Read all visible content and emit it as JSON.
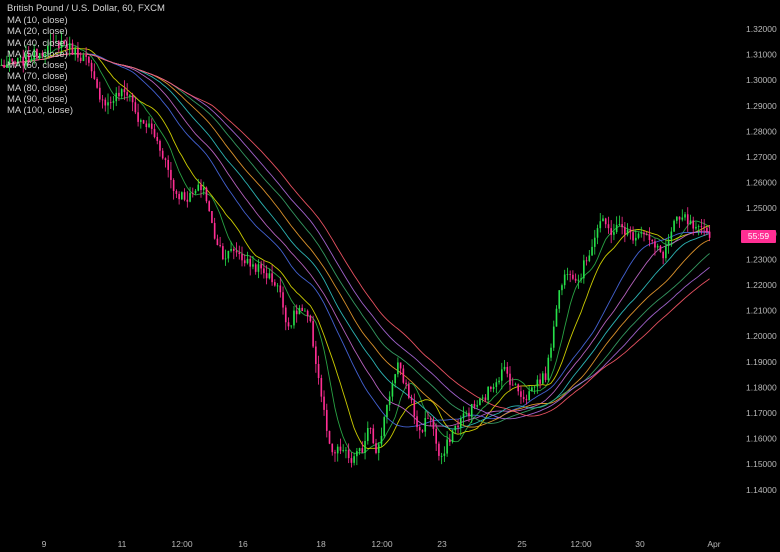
{
  "header": {
    "title": "British Pound / U.S. Dollar, 60, FXCM"
  },
  "legend": [
    "MA (10, close)",
    "MA (20, close)",
    "MA (40, close)",
    "MA (50, close)",
    "MA (60, close)",
    "MA (70, close)",
    "MA (80, close)",
    "MA (90, close)",
    "MA (100, close)"
  ],
  "price_tag": "55:59",
  "colors": {
    "background": "#000000",
    "up": "#26e04a",
    "down": "#ff2e93",
    "tag": "#ff2e93",
    "text": "#cfcfcf"
  },
  "chart_data": {
    "type": "line",
    "title": "British Pound / U.S. Dollar, 60, FXCM",
    "x_ticks": [
      "9",
      "11",
      "12:00",
      "16",
      "18",
      "12:00",
      "23",
      "25",
      "12:00",
      "30",
      "Apr"
    ],
    "y_ticks": [
      "1.32000",
      "1.31000",
      "1.30000",
      "1.29000",
      "1.28000",
      "1.27000",
      "1.26000",
      "1.25000",
      "1.24000",
      "1.23000",
      "1.22000",
      "1.21000",
      "1.20000",
      "1.19000",
      "1.18000",
      "1.17000",
      "1.16000",
      "1.15000",
      "1.14000"
    ],
    "ylim": [
      1.1349,
      1.3259
    ],
    "grid": false,
    "price_path": [
      [
        0.0,
        1.3055
      ],
      [
        0.03,
        1.3075
      ],
      [
        0.06,
        1.312
      ],
      [
        0.085,
        1.315
      ],
      [
        0.1,
        1.312
      ],
      [
        0.12,
        1.308
      ],
      [
        0.135,
        1.296
      ],
      [
        0.15,
        1.2905
      ],
      [
        0.165,
        1.2945
      ],
      [
        0.18,
        1.2955
      ],
      [
        0.195,
        1.283
      ],
      [
        0.21,
        1.282
      ],
      [
        0.23,
        1.27
      ],
      [
        0.245,
        1.256
      ],
      [
        0.265,
        1.254
      ],
      [
        0.285,
        1.259
      ],
      [
        0.3,
        1.24
      ],
      [
        0.315,
        1.231
      ],
      [
        0.33,
        1.234
      ],
      [
        0.345,
        1.229
      ],
      [
        0.36,
        1.227
      ],
      [
        0.375,
        1.224
      ],
      [
        0.39,
        1.22
      ],
      [
        0.405,
        1.204
      ],
      [
        0.42,
        1.211
      ],
      [
        0.435,
        1.206
      ],
      [
        0.45,
        1.18
      ],
      [
        0.465,
        1.153
      ],
      [
        0.48,
        1.156
      ],
      [
        0.495,
        1.151
      ],
      [
        0.51,
        1.156
      ],
      [
        0.52,
        1.168
      ],
      [
        0.53,
        1.152
      ],
      [
        0.545,
        1.175
      ],
      [
        0.56,
        1.188
      ],
      [
        0.575,
        1.178
      ],
      [
        0.59,
        1.162
      ],
      [
        0.605,
        1.17
      ],
      [
        0.62,
        1.15
      ],
      [
        0.635,
        1.162
      ],
      [
        0.65,
        1.168
      ],
      [
        0.665,
        1.172
      ],
      [
        0.68,
        1.175
      ],
      [
        0.695,
        1.182
      ],
      [
        0.71,
        1.187
      ],
      [
        0.725,
        1.18
      ],
      [
        0.74,
        1.176
      ],
      [
        0.755,
        1.182
      ],
      [
        0.77,
        1.185
      ],
      [
        0.785,
        1.215
      ],
      [
        0.8,
        1.227
      ],
      [
        0.815,
        1.222
      ],
      [
        0.83,
        1.233
      ],
      [
        0.845,
        1.245
      ],
      [
        0.86,
        1.241
      ],
      [
        0.875,
        1.243
      ],
      [
        0.89,
        1.239
      ],
      [
        0.905,
        1.242
      ],
      [
        0.92,
        1.235
      ],
      [
        0.935,
        1.232
      ],
      [
        0.95,
        1.244
      ],
      [
        0.965,
        1.246
      ],
      [
        0.98,
        1.241
      ],
      [
        1.0,
        1.2405
      ]
    ],
    "moving_averages": [
      {
        "name": "MA (10, close)",
        "period": 10,
        "color": "#2cb44a"
      },
      {
        "name": "MA (20, close)",
        "period": 20,
        "color": "#e0e000"
      },
      {
        "name": "MA (40, close)",
        "period": 40,
        "color": "#4a6be8"
      },
      {
        "name": "MA (50, close)",
        "period": 50,
        "color": "#c86bd0"
      },
      {
        "name": "MA (60, close)",
        "period": 60,
        "color": "#31c7c7"
      },
      {
        "name": "MA (70, close)",
        "period": 70,
        "color": "#f0a030"
      },
      {
        "name": "MA (80, close)",
        "period": 80,
        "color": "#3aa86a"
      },
      {
        "name": "MA (90, close)",
        "period": 90,
        "color": "#b06be0"
      },
      {
        "name": "MA (100, close)",
        "period": 100,
        "color": "#ff5a6a"
      }
    ]
  }
}
